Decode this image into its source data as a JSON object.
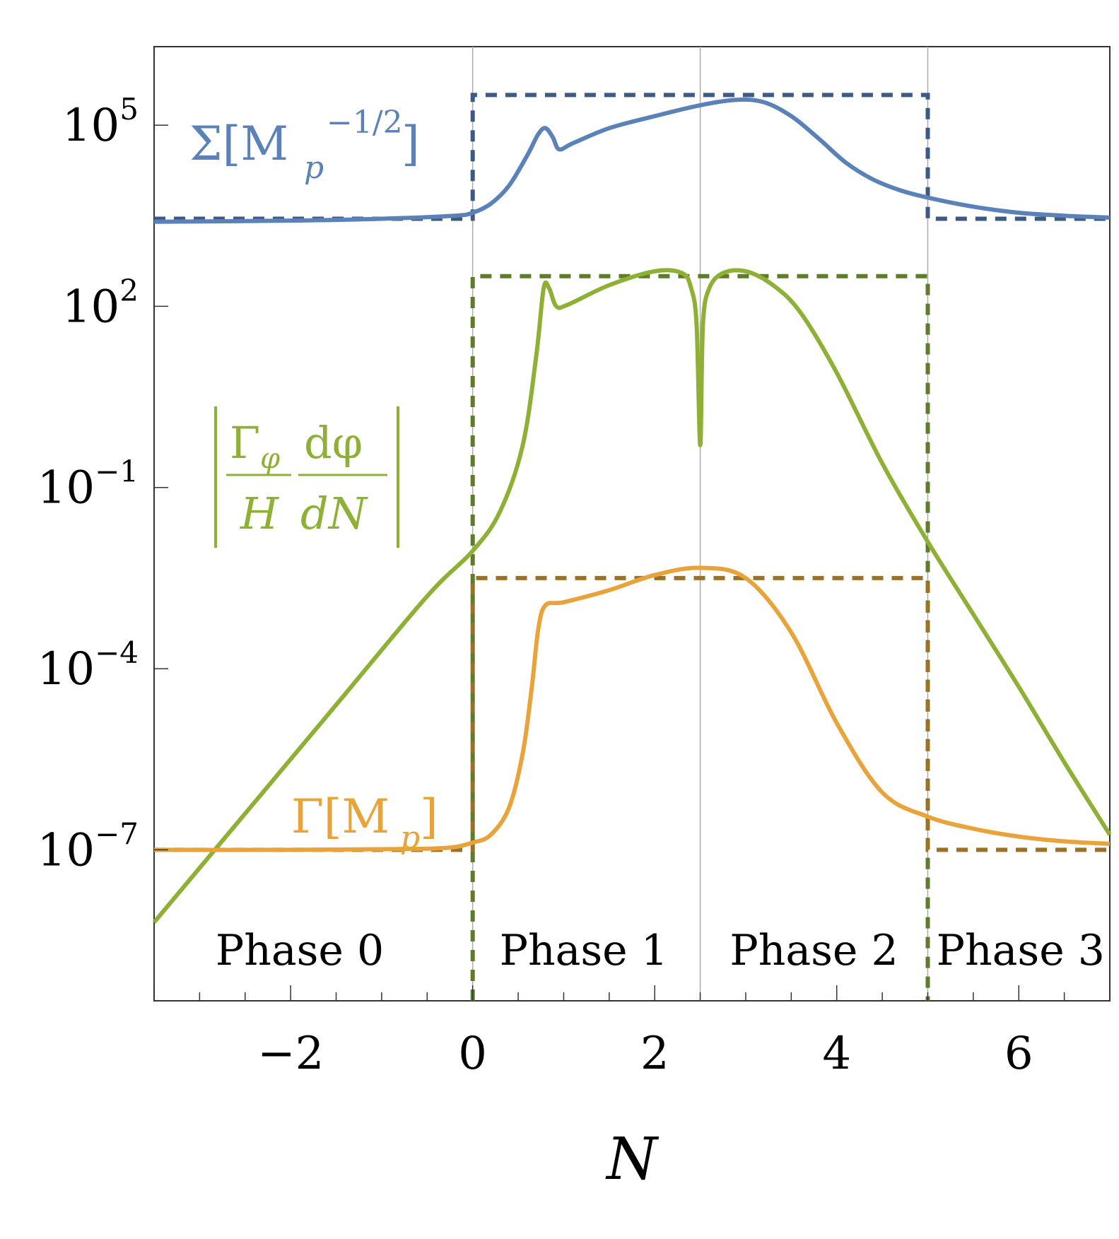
{
  "chart_data": {
    "type": "line",
    "xlabel": "N",
    "y_scale": "log",
    "xlim": [
      -3.5,
      7
    ],
    "ylim_log10": [
      -9.5,
      6.3
    ],
    "x_ticks": [
      -2,
      0,
      2,
      4,
      6
    ],
    "x_tick_labels": [
      "−2",
      "0",
      "2",
      "4",
      "6"
    ],
    "y_ticks_log10": [
      5,
      2,
      -1,
      -4,
      -7
    ],
    "y_tick_labels": [
      {
        "base": "10",
        "exp": "5"
      },
      {
        "base": "10",
        "exp": "2"
      },
      {
        "base": "10",
        "exp": "−1"
      },
      {
        "base": "10",
        "exp": "−4"
      },
      {
        "base": "10",
        "exp": "−7"
      }
    ],
    "vertical_lines": [
      0,
      2.5,
      5
    ],
    "phases": [
      {
        "label": "Phase 0",
        "x": -1.9
      },
      {
        "label": "Phase 1",
        "x": 1.22
      },
      {
        "label": "Phase 2",
        "x": 3.75
      },
      {
        "label": "Phase 3",
        "x": 6.02
      }
    ],
    "series": [
      {
        "id": "sigma",
        "label": {
          "text": "Σ[M",
          "sub": "p",
          "sup": "−1/2",
          "close": "]"
        },
        "color": "#5b82b8",
        "dash_color": "#3d5a85",
        "points": [
          [
            -3.5,
            3.4
          ],
          [
            -2,
            3.42
          ],
          [
            -1,
            3.45
          ],
          [
            -0.2,
            3.5
          ],
          [
            0,
            3.55
          ],
          [
            0.2,
            3.7
          ],
          [
            0.4,
            4.0
          ],
          [
            0.6,
            4.5
          ],
          [
            0.72,
            4.85
          ],
          [
            0.8,
            4.95
          ],
          [
            0.88,
            4.8
          ],
          [
            0.95,
            4.6
          ],
          [
            1.1,
            4.7
          ],
          [
            1.5,
            4.95
          ],
          [
            2,
            5.15
          ],
          [
            2.5,
            5.33
          ],
          [
            2.9,
            5.42
          ],
          [
            3.2,
            5.38
          ],
          [
            3.5,
            5.15
          ],
          [
            3.8,
            4.78
          ],
          [
            4.1,
            4.38
          ],
          [
            4.4,
            4.1
          ],
          [
            4.7,
            3.92
          ],
          [
            5,
            3.8
          ],
          [
            5.5,
            3.65
          ],
          [
            6,
            3.55
          ],
          [
            6.5,
            3.5
          ],
          [
            7,
            3.47
          ]
        ],
        "step": [
          [
            -3.5,
            3.45
          ],
          [
            0,
            3.45
          ],
          [
            0,
            5.5
          ],
          [
            5,
            5.5
          ],
          [
            5,
            3.45
          ],
          [
            7,
            3.45
          ]
        ]
      },
      {
        "id": "gamma-dphi",
        "label": {
          "text": "|Γ",
          "sub": "φ",
          "mid": "dφ",
          "den1": "H",
          "den2": "dN"
        },
        "color": "#8db035",
        "dash_color": "#5f7c2a",
        "points": [
          [
            -3.5,
            -8.2
          ],
          [
            -2.5,
            -6.4
          ],
          [
            -1.5,
            -4.6
          ],
          [
            -0.5,
            -2.8
          ],
          [
            0,
            -2.05
          ],
          [
            0.3,
            -1.4
          ],
          [
            0.55,
            -0.3
          ],
          [
            0.7,
            1.2
          ],
          [
            0.78,
            2.3
          ],
          [
            0.84,
            2.3
          ],
          [
            0.92,
            2.0
          ],
          [
            1.05,
            2.03
          ],
          [
            1.5,
            2.35
          ],
          [
            2,
            2.58
          ],
          [
            2.3,
            2.55
          ],
          [
            2.4,
            2.3
          ],
          [
            2.46,
            1.7
          ],
          [
            2.5,
            -0.3
          ],
          [
            2.53,
            1.7
          ],
          [
            2.6,
            2.3
          ],
          [
            2.75,
            2.55
          ],
          [
            3,
            2.58
          ],
          [
            3.3,
            2.35
          ],
          [
            3.6,
            1.9
          ],
          [
            4,
            0.9
          ],
          [
            4.5,
            -0.6
          ],
          [
            5,
            -1.9
          ],
          [
            5.5,
            -3.1
          ],
          [
            6,
            -4.3
          ],
          [
            6.5,
            -5.55
          ],
          [
            7,
            -6.75
          ]
        ],
        "step": [
          [
            0,
            -9.5
          ],
          [
            0,
            2.5
          ],
          [
            5,
            2.5
          ],
          [
            5,
            -9.5
          ]
        ]
      },
      {
        "id": "gamma",
        "label": {
          "text": "Γ[M",
          "sub": "p",
          "close": "]"
        },
        "color": "#e8a33a",
        "dash_color": "#9b7224",
        "points": [
          [
            -3.5,
            -7
          ],
          [
            -2,
            -7
          ],
          [
            -1,
            -6.99
          ],
          [
            -0.3,
            -6.97
          ],
          [
            0,
            -6.88
          ],
          [
            0.2,
            -6.75
          ],
          [
            0.4,
            -6.3
          ],
          [
            0.55,
            -5.4
          ],
          [
            0.65,
            -4.3
          ],
          [
            0.72,
            -3.35
          ],
          [
            0.8,
            -2.95
          ],
          [
            1,
            -2.9
          ],
          [
            1.5,
            -2.7
          ],
          [
            2,
            -2.45
          ],
          [
            2.5,
            -2.33
          ],
          [
            3,
            -2.5
          ],
          [
            3.5,
            -3.4
          ],
          [
            4,
            -4.9
          ],
          [
            4.5,
            -6.05
          ],
          [
            5,
            -6.45
          ],
          [
            5.5,
            -6.65
          ],
          [
            6,
            -6.78
          ],
          [
            6.5,
            -6.86
          ],
          [
            7,
            -6.9
          ]
        ],
        "step": [
          [
            -3.5,
            -7
          ],
          [
            0,
            -7
          ],
          [
            0,
            -2.5
          ],
          [
            5,
            -2.5
          ],
          [
            5,
            -7
          ],
          [
            7,
            -7
          ]
        ]
      }
    ]
  }
}
